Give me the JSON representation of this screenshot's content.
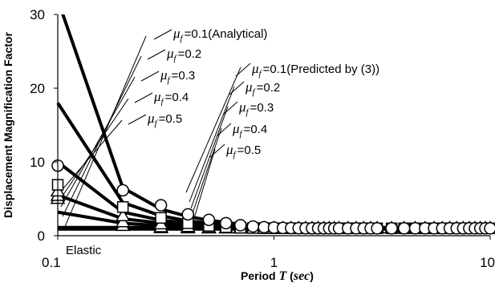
{
  "chart_data": {
    "type": "line",
    "x_scale": "log",
    "xlim": [
      0.1,
      10
    ],
    "ylim": [
      0,
      30
    ],
    "x_ticks": [
      "0.1",
      "1",
      "10"
    ],
    "y_ticks": [
      "0",
      "10",
      "20",
      "30"
    ],
    "xlabel_parts": [
      "Period ",
      "T",
      " (",
      "sec",
      ")"
    ],
    "ylabel": "Displacement Magnification Factor",
    "grid": false,
    "line_x": [
      0.1,
      0.2,
      0.3,
      0.4,
      0.5,
      0.6,
      0.7,
      0.8,
      0.9,
      1.0,
      2.0,
      3.0,
      4.0,
      5.0,
      6.0,
      7.0,
      8.0,
      9.0,
      10.0
    ],
    "marker_x": [
      0.1,
      0.2,
      0.3,
      0.4,
      0.5,
      0.6,
      0.7,
      0.8,
      0.9,
      1.0,
      1.1,
      1.2,
      1.3,
      1.4,
      1.5,
      1.6,
      1.7,
      1.8,
      1.9,
      2.0,
      2.2,
      2.4,
      2.6,
      2.8,
      3.0,
      3.5,
      4.0,
      4.5,
      5.0,
      5.5,
      6.0,
      6.5,
      7.0,
      7.5,
      8.0,
      8.5,
      9.0,
      9.5,
      10.0
    ],
    "analytical_series": [
      {
        "name": "μf=0.1",
        "x": [
          0.1,
          0.2,
          0.3,
          0.4,
          0.5,
          0.6,
          0.7,
          0.8,
          0.9,
          1.0,
          2.0,
          3.0,
          4.0,
          5.0,
          6.0,
          7.0,
          8.0,
          9.0,
          10.0
        ],
        "y": [
          35,
          6.5,
          3.6,
          2.6,
          2.1,
          1.8,
          1.55,
          1.4,
          1.3,
          1.2,
          1.05,
          1.02,
          1.0,
          1.0,
          1.0,
          1.0,
          1.0,
          1.0,
          1.0
        ]
      },
      {
        "name": "μf=0.2",
        "x": [
          0.1,
          0.2,
          0.3,
          0.4,
          0.5,
          0.6,
          0.7,
          0.8,
          0.9,
          1.0,
          2.0,
          3.0,
          4.0,
          5.0,
          6.0,
          7.0,
          8.0,
          9.0,
          10.0
        ],
        "y": [
          18,
          4.5,
          2.7,
          2.0,
          1.7,
          1.5,
          1.35,
          1.25,
          1.2,
          1.15,
          1.03,
          1.01,
          1.0,
          1.0,
          1.0,
          1.0,
          1.0,
          1.0,
          1.0
        ]
      },
      {
        "name": "μf=0.3",
        "x": [
          0.1,
          0.2,
          0.3,
          0.4,
          0.5,
          0.6,
          0.7,
          0.8,
          0.9,
          1.0,
          2.0,
          3.0,
          4.0,
          5.0,
          6.0,
          7.0,
          8.0,
          9.0,
          10.0
        ],
        "y": [
          10,
          3.2,
          2.1,
          1.7,
          1.5,
          1.35,
          1.25,
          1.18,
          1.13,
          1.1,
          1.02,
          1.01,
          1.0,
          1.0,
          1.0,
          1.0,
          1.0,
          1.0,
          1.0
        ]
      },
      {
        "name": "μf=0.4",
        "x": [
          0.1,
          0.2,
          0.3,
          0.4,
          0.5,
          0.6,
          0.7,
          0.8,
          0.9,
          1.0,
          2.0,
          3.0,
          4.0,
          5.0,
          6.0,
          7.0,
          8.0,
          9.0,
          10.0
        ],
        "y": [
          5.5,
          2.3,
          1.7,
          1.45,
          1.3,
          1.22,
          1.16,
          1.12,
          1.09,
          1.07,
          1.01,
          1.0,
          1.0,
          1.0,
          1.0,
          1.0,
          1.0,
          1.0,
          1.0
        ]
      },
      {
        "name": "μf=0.5",
        "x": [
          0.1,
          0.2,
          0.3,
          0.4,
          0.5,
          0.6,
          0.7,
          0.8,
          0.9,
          1.0,
          2.0,
          3.0,
          4.0,
          5.0,
          6.0,
          7.0,
          8.0,
          9.0,
          10.0
        ],
        "y": [
          3.2,
          1.7,
          1.35,
          1.22,
          1.15,
          1.11,
          1.08,
          1.06,
          1.05,
          1.04,
          1.0,
          1.0,
          1.0,
          1.0,
          1.0,
          1.0,
          1.0,
          1.0,
          1.0
        ]
      },
      {
        "name": "Elastic",
        "x": [
          0.1,
          10.0
        ],
        "y": [
          1.0,
          1.0
        ]
      }
    ],
    "predicted_series": [
      {
        "name": "μf=0.1",
        "marker": "circle",
        "T0": 0.2,
        "A": 8.5
      },
      {
        "name": "μf=0.2",
        "marker": "square",
        "T0": 0.14,
        "A": 5.9
      },
      {
        "name": "μf=0.3",
        "marker": "triangle",
        "T0": 0.09,
        "A": 5.0
      },
      {
        "name": "μf=0.4",
        "marker": "triangle",
        "T0": 0.06,
        "A": 4.4
      },
      {
        "name": "μf=0.5",
        "marker": "triangle",
        "T0": 0.04,
        "A": 4.0
      }
    ],
    "annotations": {
      "group1": [
        {
          "mu": "μ",
          "sub": "f",
          "text": "=0.1(Analytical)"
        },
        {
          "mu": "μ",
          "sub": "f",
          "text": "=0.2"
        },
        {
          "mu": "μ",
          "sub": "f",
          "text": "=0.3"
        },
        {
          "mu": "μ",
          "sub": "f",
          "text": "=0.4"
        },
        {
          "mu": "μ",
          "sub": "f",
          "text": "=0.5"
        }
      ],
      "group2": [
        {
          "mu": "μ",
          "sub": "f",
          "text": "=0.1(Predicted by (3))"
        },
        {
          "mu": "μ",
          "sub": "f",
          "text": "=0.2"
        },
        {
          "mu": "μ",
          "sub": "f",
          "text": "=0.3"
        },
        {
          "mu": "μ",
          "sub": "f",
          "text": "=0.4"
        },
        {
          "mu": "μ",
          "sub": "f",
          "text": "=0.5"
        }
      ],
      "elastic_label": "Elastic"
    }
  }
}
